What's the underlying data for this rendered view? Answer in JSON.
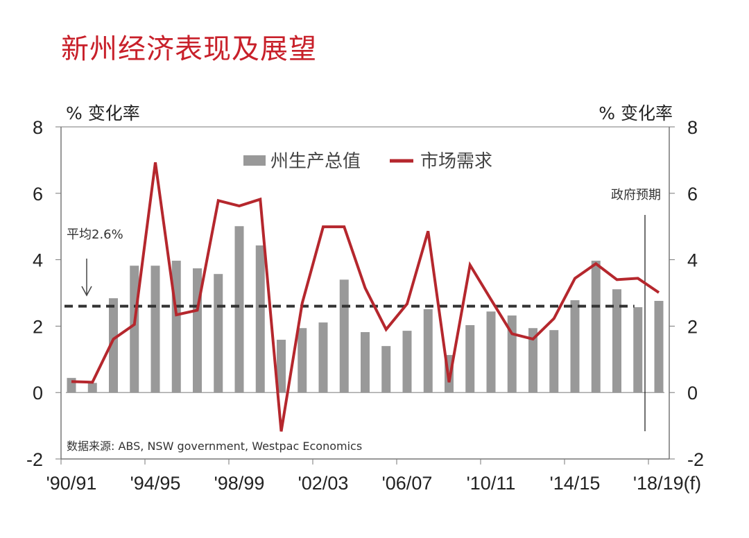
{
  "title": "新州经济表现及展望",
  "chart_data": {
    "type": "bar+line",
    "title": "新州经济表现及展望",
    "ylabel_left": "% 变化率",
    "ylabel_right": "% 变化率",
    "ylim": [
      -2,
      8
    ],
    "yticks": [
      -2,
      0,
      2,
      4,
      6,
      8
    ],
    "categories": [
      "'90/91",
      "'91/92",
      "'92/93",
      "'93/94",
      "'94/95",
      "'95/96",
      "'96/97",
      "'97/98",
      "'98/99",
      "'99/00",
      "'00/01",
      "'01/02",
      "'02/03",
      "'03/04",
      "'04/05",
      "'05/06",
      "'06/07",
      "'07/08",
      "'08/09",
      "'09/10",
      "'10/11",
      "'11/12",
      "'12/13",
      "'13/14",
      "'14/15",
      "'15/16",
      "'16/17",
      "'17/18",
      "'18/19(f)"
    ],
    "xtick_labels": [
      "'90/91",
      "'94/95",
      "'98/99",
      "'02/03",
      "'06/07",
      "'10/11",
      "'14/15",
      "'18/19(f)"
    ],
    "xtick_every": 4,
    "series": [
      {
        "name": "州生产总值",
        "type": "bar",
        "color": "#999999",
        "values": [
          0.44,
          0.29,
          2.84,
          3.82,
          3.82,
          3.97,
          3.74,
          3.57,
          5.01,
          4.43,
          1.59,
          1.94,
          2.11,
          3.4,
          1.82,
          1.4,
          1.86,
          2.51,
          1.13,
          2.03,
          2.44,
          2.32,
          1.94,
          1.88,
          2.78,
          3.97,
          3.11,
          2.57,
          2.76
        ]
      },
      {
        "name": "市场需求",
        "type": "line",
        "color": "#b5272d",
        "values": [
          0.33,
          0.31,
          1.61,
          2.05,
          6.93,
          2.34,
          2.48,
          5.78,
          5.62,
          5.82,
          -1.17,
          2.69,
          4.99,
          4.99,
          3.15,
          1.9,
          2.67,
          4.86,
          0.31,
          3.84,
          2.8,
          1.77,
          1.61,
          2.23,
          3.44,
          3.88,
          3.4,
          3.44,
          3.01
        ]
      }
    ],
    "average": {
      "label": "平均2.6%",
      "value": 2.6
    },
    "forecast_label": "政府预期",
    "source": "数据来源: ABS, NSW government, Westpac Economics",
    "legend_position": "top-center"
  }
}
